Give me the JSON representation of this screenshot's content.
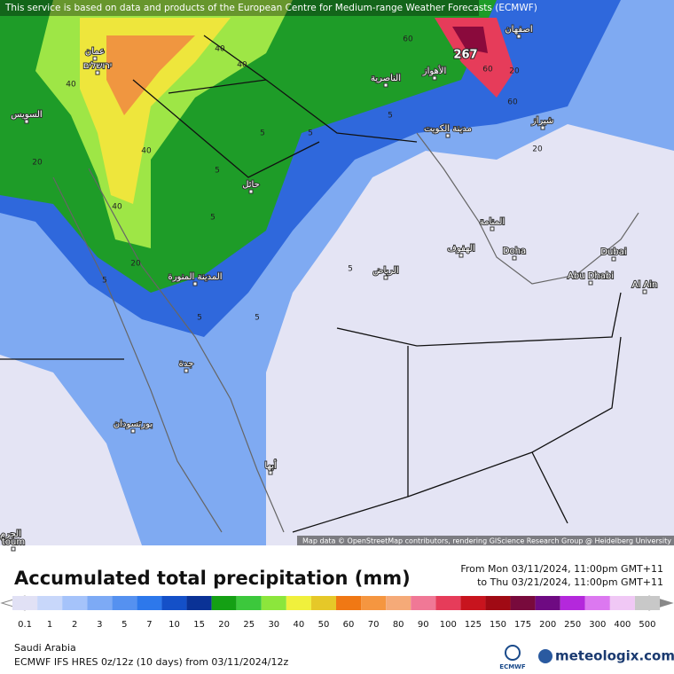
{
  "header": {
    "notice": "This service is based on data and products of the European Centre for Medium-range Weather Forecasts (ECMWF)"
  },
  "map": {
    "places": [
      "اصفهان",
      "عمان",
      "ירושלים",
      "السويس",
      "الناصرية",
      "الأهواز",
      "مدينة الكويت",
      "شيراز",
      "حائل",
      "المنامة",
      "الهفوف",
      "Doha",
      "Dubai",
      "Abu Dhabi",
      "Al Ain",
      "الرياض",
      "المدينة المنورة",
      "جدة",
      "بورتسودان",
      "أبها",
      "الجرم",
      "toum"
    ],
    "contour_labels": [
      "40",
      "40",
      "40",
      "40",
      "20",
      "20",
      "40",
      "5",
      "5",
      "5",
      "5",
      "5",
      "5",
      "60",
      "60",
      "60",
      "20",
      "20",
      "5",
      "5",
      "5"
    ],
    "max_label": "267",
    "attribution": "Map data © OpenStreetMap contributors, rendering GIScience Research Group @ Heidelberg University"
  },
  "footer": {
    "title": "Accumulated total precipitation (mm)",
    "period_from": "From Mon 03/11/2024, 11:00pm GMT+11",
    "period_to": "to Thu 03/21/2024, 11:00pm GMT+11",
    "legend": {
      "ticks": [
        0.1,
        1,
        2,
        3,
        5,
        7,
        10,
        15,
        20,
        25,
        30,
        40,
        50,
        60,
        70,
        80,
        90,
        100,
        125,
        150,
        175,
        200,
        250,
        300,
        400,
        500
      ],
      "colors": [
        "#e1e1f5",
        "#c8d7fa",
        "#a5c3fa",
        "#7daaf5",
        "#5591f0",
        "#2d78eb",
        "#1450c8",
        "#0a3296",
        "#14a014",
        "#3cc83c",
        "#8ce63c",
        "#f0f03c",
        "#e6c828",
        "#f07814",
        "#f59640",
        "#f5aa78",
        "#f07896",
        "#e63c5a",
        "#c8141e",
        "#a00a14",
        "#780a3c",
        "#6e0a82",
        "#b428dc",
        "#dc78f0",
        "#f0c8f5",
        "#c8c8c8"
      ]
    },
    "region": "Saudi Arabia",
    "model": "ECMWF IFS HRES 0z/12z (10 days) from 03/11/2024/12z",
    "logo_left": "ECMWF",
    "logo_right": "meteologix.com"
  }
}
